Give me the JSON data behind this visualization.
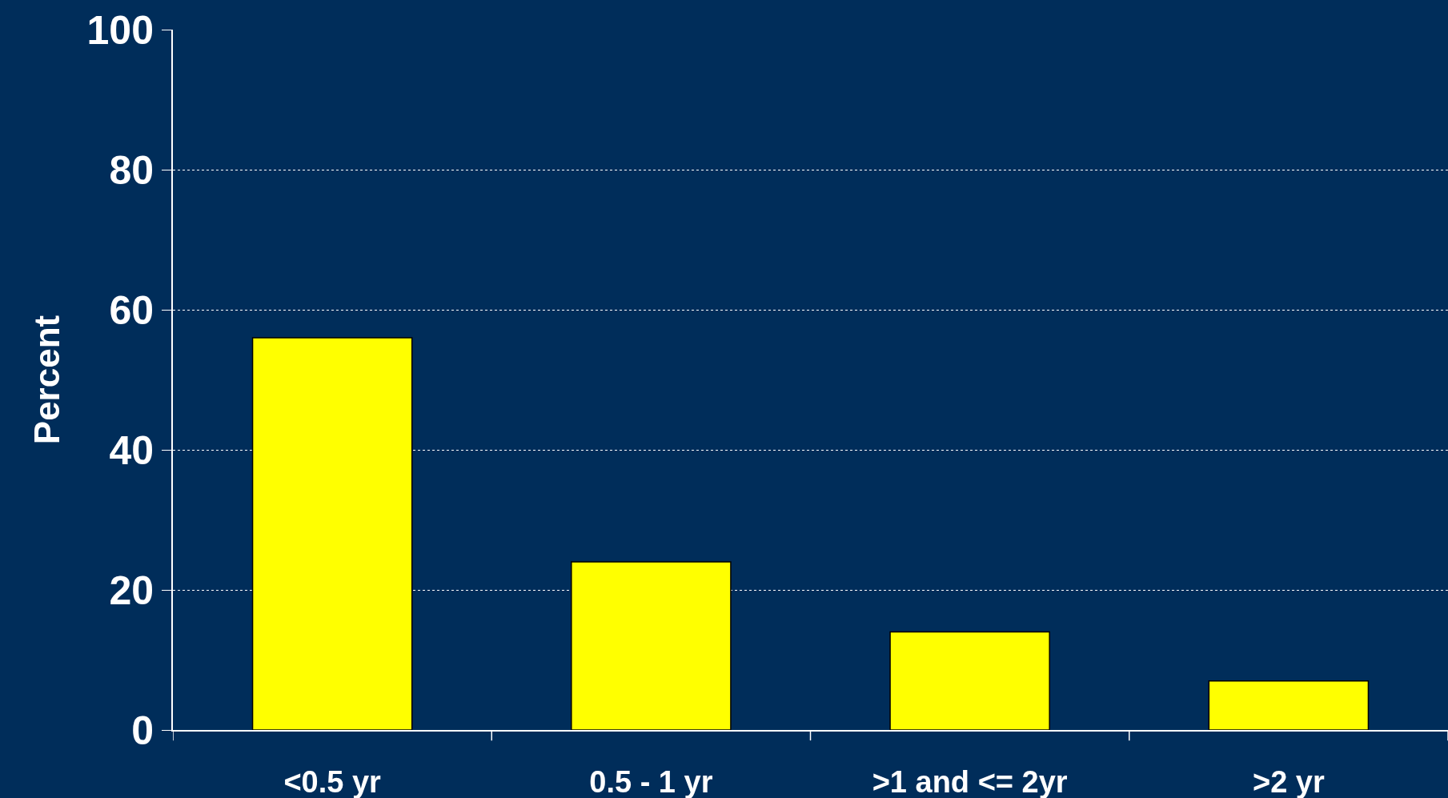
{
  "chart_data": {
    "type": "bar",
    "ylabel": "Percent",
    "categories": [
      "<0.5 yr",
      "0.5 - 1 yr",
      ">1 and <= 2yr",
      ">2 yr"
    ],
    "values": [
      56,
      24,
      14,
      7
    ],
    "color": "#ffff00",
    "ylim": [
      0,
      100
    ],
    "yticks": [
      0,
      20,
      40,
      60,
      80,
      100
    ],
    "grid": "y"
  }
}
